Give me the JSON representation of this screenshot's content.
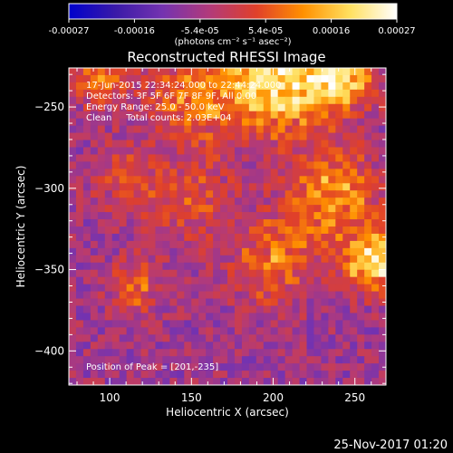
{
  "chart_data": {
    "type": "heatmap",
    "title": "Reconstructed RHESSI Image",
    "xlabel": "Heliocentric X (arcsec)",
    "ylabel": "Heliocentric Y (arcsec)",
    "xlim": [
      75,
      269
    ],
    "ylim": [
      -421,
      -226
    ],
    "x_ticks": [
      100,
      150,
      200,
      250
    ],
    "y_ticks": [
      -250,
      -300,
      -350,
      -400
    ],
    "colorbar": {
      "range": [
        -0.00027,
        0.00027
      ],
      "tick_labels": [
        "-0.00027",
        "-0.00016",
        "-5.4e-05",
        "5.4e-05",
        "0.00016",
        "0.00027"
      ],
      "unit_label": "(photons cm⁻² s⁻¹ asec⁻²)",
      "colors": [
        "#0000cc",
        "#3a1aa8",
        "#7433b0",
        "#b23a7a",
        "#e0402a",
        "#ff9000",
        "#ffe060",
        "#ffffff"
      ]
    },
    "annotations": {
      "time_range": "17-Jun-2015 22:34:24.000 to 22:44:24.000",
      "detectors": "Detectors: 3F 5F 6F 7F 8F 9F, All 0.00",
      "energy_range": "Energy Range: 25.0 - 50.0 keV",
      "method_counts": "Clean     Total counts: 2.03E+04",
      "peak": "Position of Peak = [201,-235]"
    },
    "bright_regions": [
      {
        "x": 201,
        "y": -235,
        "intensity": 0.00027,
        "spread": 30
      },
      {
        "x": 240,
        "y": -232,
        "intensity": 0.00022,
        "spread": 22
      },
      {
        "x": 150,
        "y": -245,
        "intensity": 0.00016,
        "spread": 25
      },
      {
        "x": 95,
        "y": -232,
        "intensity": 0.00014,
        "spread": 18
      },
      {
        "x": 235,
        "y": -305,
        "intensity": 0.00018,
        "spread": 28
      },
      {
        "x": 262,
        "y": -345,
        "intensity": 0.00026,
        "spread": 18
      },
      {
        "x": 200,
        "y": -345,
        "intensity": 0.00014,
        "spread": 25
      },
      {
        "x": 150,
        "y": -305,
        "intensity": 9e-05,
        "spread": 28
      },
      {
        "x": 115,
        "y": -360,
        "intensity": 0.00012,
        "spread": 16
      },
      {
        "x": 110,
        "y": -295,
        "intensity": 8e-05,
        "spread": 20
      }
    ],
    "background_level": -6e-05
  },
  "footer": {
    "date": "25-Nov-2017 01:20"
  }
}
